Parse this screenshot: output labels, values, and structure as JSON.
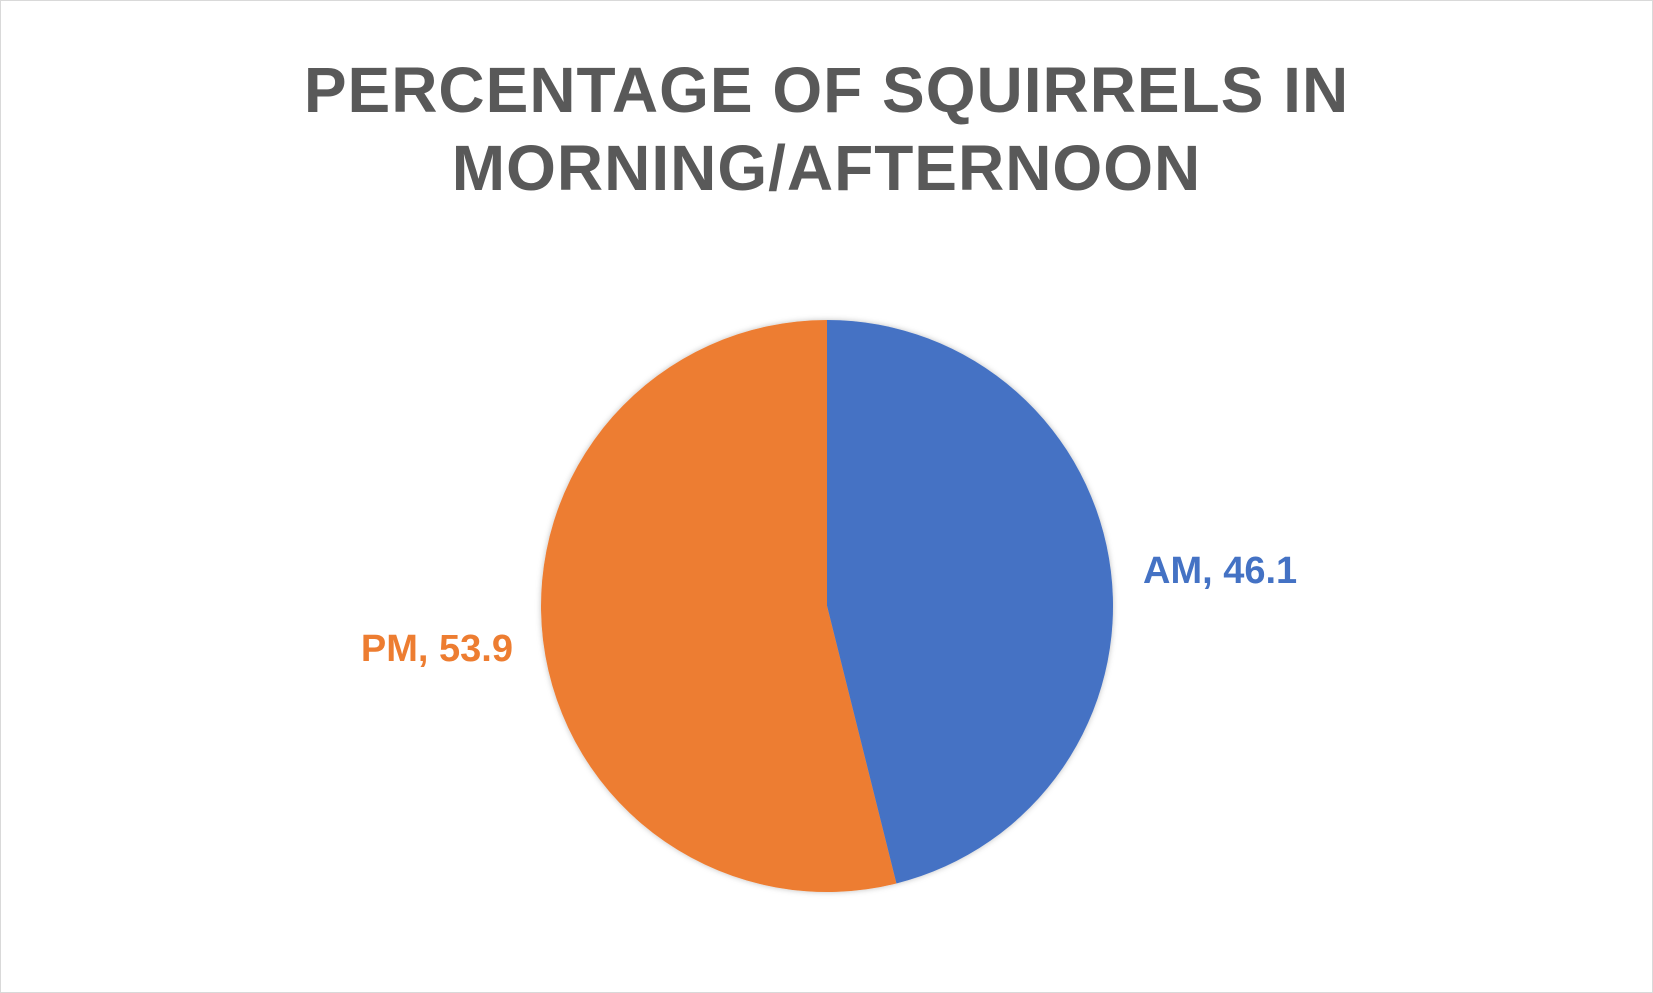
{
  "chart_data": {
    "type": "pie",
    "title_lines": [
      "PERCENTAGE OF SQUIRRELS IN",
      "MORNING/AFTERNOON"
    ],
    "categories": [
      "AM",
      "PM"
    ],
    "values": [
      46.1,
      53.9
    ],
    "labels": [
      "AM, 46.1",
      "PM, 53.9"
    ],
    "colors": [
      "#4472C4",
      "#ED7D31"
    ],
    "legend": "none",
    "start_angle": "12 o'clock, clockwise"
  }
}
